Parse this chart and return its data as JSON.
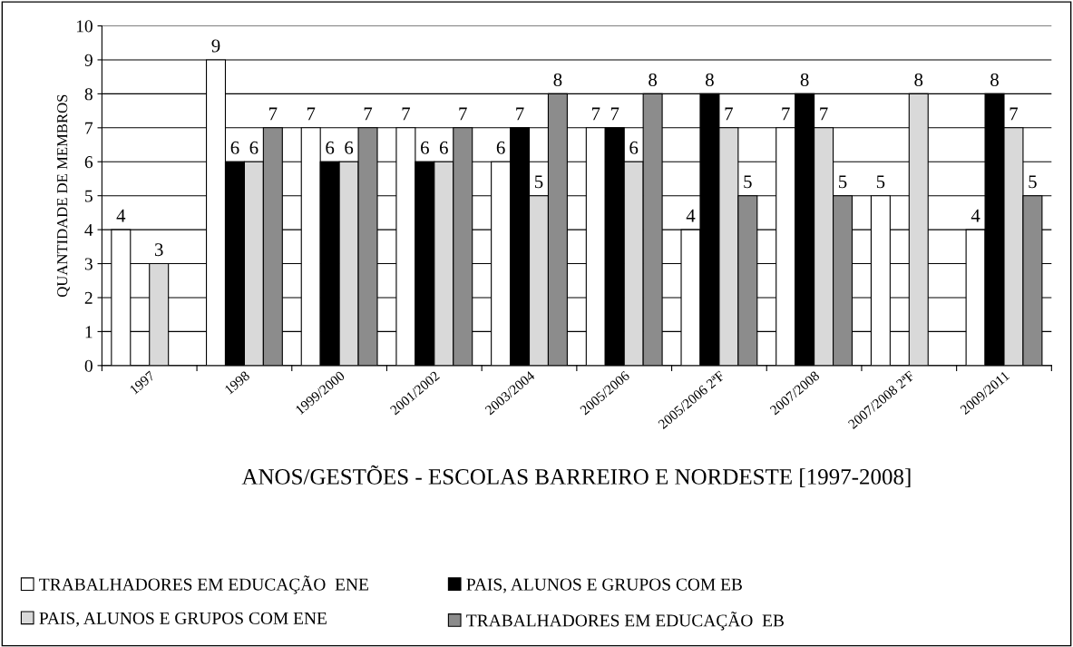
{
  "chart_data": {
    "type": "bar",
    "xlabel": "ANOS/GESTÕES - ESCOLAS BARREIRO E NORDESTE [1997-2008]",
    "ylabel": "QUANTIDADE DE MEMBROS",
    "categories": [
      "1997",
      "1998",
      "1999/2000",
      "2001/2002",
      "2003/2004",
      "2005/2006",
      "2005/2006 2ªF",
      "2007/2008",
      "2007/2008 2ªF",
      "2009/2011"
    ],
    "series": [
      {
        "name": "TRABALHADORES EM EDUCAÇÃO  ENE",
        "color": "#ffffff",
        "values": [
          4,
          9,
          7,
          7,
          6,
          7,
          4,
          7,
          5,
          4
        ]
      },
      {
        "name": "PAIS, ALUNOS E GRUPOS COM EB",
        "color": "#000000",
        "values": [
          null,
          6,
          6,
          6,
          7,
          7,
          8,
          8,
          null,
          8
        ]
      },
      {
        "name": "PAIS, ALUNOS E GRUPOS COM ENE",
        "color": "#d9d9d9",
        "values": [
          3,
          6,
          6,
          6,
          5,
          6,
          7,
          7,
          8,
          7
        ]
      },
      {
        "name": "TRABALHADORES EM EDUCAÇÃO  EB",
        "color": "#8c8c8c",
        "values": [
          null,
          7,
          7,
          7,
          8,
          8,
          5,
          5,
          null,
          5
        ]
      }
    ],
    "ylim": [
      0,
      10
    ],
    "yticks": [
      0,
      1,
      2,
      3,
      4,
      5,
      6,
      7,
      8,
      9,
      10
    ],
    "grid": "y",
    "legend": "bottom",
    "data_labels": true
  }
}
